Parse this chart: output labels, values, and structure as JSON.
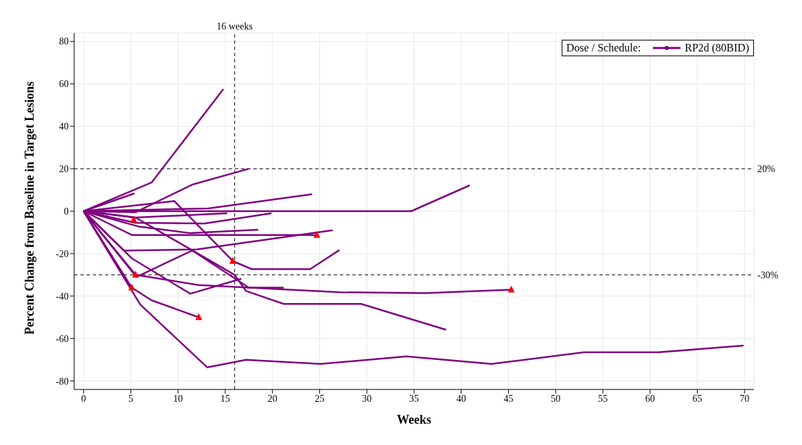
{
  "chart_data": {
    "type": "line",
    "xlabel": "Weeks",
    "ylabel": "Percent Change from Baseline in Target Lesions",
    "legend_title": "Dose / Schedule:",
    "legend": "top right",
    "grid": true,
    "line_style": "solid",
    "xlim": [
      -1,
      71
    ],
    "xticks": [
      0,
      5,
      10,
      15,
      20,
      25,
      30,
      35,
      40,
      45,
      50,
      55,
      60,
      65,
      70
    ],
    "ylim": [
      -84,
      84
    ],
    "yticks": [
      -80,
      -60,
      -40,
      -20,
      0,
      20,
      40,
      60,
      80
    ],
    "ref_lines": [
      {
        "axis": "y",
        "value": 20,
        "label": "20%",
        "line_style": "dashed",
        "color": "#000000"
      },
      {
        "axis": "y",
        "value": -30,
        "label": "-30%",
        "line_style": "dashed",
        "color": "#000000"
      },
      {
        "axis": "x",
        "value": 16,
        "label": "16 weeks",
        "line_style": "dashed",
        "color": "#000000"
      }
    ],
    "series": [
      {
        "name": "RP2d (80BID)",
        "color": "#800080",
        "x": [
          0,
          7.2,
          14.8
        ],
        "values": [
          0,
          13.5,
          57.5
        ]
      },
      {
        "color": "#800080",
        "x": [
          0,
          5.4
        ],
        "values": [
          0,
          8.4
        ]
      },
      {
        "color": "#800080",
        "x": [
          0,
          5.5,
          11.5,
          17.5
        ],
        "values": [
          0,
          -0.5,
          12.5,
          20
        ]
      },
      {
        "color": "#800080",
        "x": [
          0,
          9.6,
          15.8,
          17.8,
          24,
          27.1
        ],
        "values": [
          0,
          4.8,
          -23.5,
          -27.3,
          -27.3,
          -18.3
        ]
      },
      {
        "color": "#800080",
        "x": [
          0,
          34.7,
          40.9
        ],
        "values": [
          0,
          0,
          12.2
        ]
      },
      {
        "color": "#800080",
        "x": [
          0,
          13.2,
          24.2
        ],
        "values": [
          0,
          1.3,
          8
        ]
      },
      {
        "color": "#800080",
        "x": [
          0,
          5.5,
          15.2
        ],
        "values": [
          0,
          -3,
          -1
        ]
      },
      {
        "color": "#800080",
        "x": [
          0,
          5.5,
          12.8,
          19.9
        ],
        "values": [
          0,
          -5.5,
          -5.8,
          -1
        ]
      },
      {
        "color": "#800080",
        "x": [
          0,
          5.9,
          11.2,
          18.5
        ],
        "values": [
          0,
          -7.3,
          -10.3,
          -8.7
        ]
      },
      {
        "color": "#800080",
        "x": [
          0,
          5.1,
          24.7
        ],
        "values": [
          0,
          -11.2,
          -11.2
        ]
      },
      {
        "color": "#800080",
        "x": [
          0,
          4.3,
          12,
          26.4
        ],
        "values": [
          0,
          -18.6,
          -18,
          -9
        ]
      },
      {
        "color": "#800080",
        "x": [
          0,
          5.1,
          11.3,
          16.7
        ],
        "values": [
          0,
          -22.2,
          -38.9,
          -31.8
        ]
      },
      {
        "color": "#800080",
        "x": [
          0,
          5.6,
          11.5,
          17.5,
          21.2
        ],
        "values": [
          0,
          -31,
          -18.5,
          -36,
          -36
        ]
      },
      {
        "color": "#800080",
        "x": [
          0,
          5.5,
          12.2,
          27.2,
          36.2,
          45.3
        ],
        "values": [
          0,
          -30,
          -34.8,
          -38.2,
          -38.6,
          -37
        ]
      },
      {
        "color": "#800080",
        "x": [
          0,
          5.5,
          16,
          17.2,
          21.2,
          29.4,
          38.4
        ],
        "values": [
          0,
          -3,
          -30,
          -37.6,
          -43.7,
          -43.7,
          -55.9
        ]
      },
      {
        "color": "#800080",
        "x": [
          0,
          5.1,
          7.2,
          12.2
        ],
        "values": [
          0,
          -36,
          -42,
          -50
        ]
      },
      {
        "color": "#800080",
        "x": [
          0,
          6,
          13.1,
          17.2,
          25.1,
          34.2,
          43.2,
          53,
          60.9,
          69.9
        ],
        "values": [
          0,
          -44,
          -73.6,
          -70,
          -72,
          -68.4,
          -72,
          -66.5,
          -66.5,
          -63.3
        ]
      },
      {
        "type": "scatter",
        "color": "#ff0000",
        "marker": "triangle",
        "x": [
          5.3,
          24.7,
          15.8,
          5.5,
          5.1,
          12.2,
          45.3
        ],
        "values": [
          -4,
          -11.2,
          -23.5,
          -30,
          -36,
          -50,
          -37
        ]
      }
    ]
  }
}
